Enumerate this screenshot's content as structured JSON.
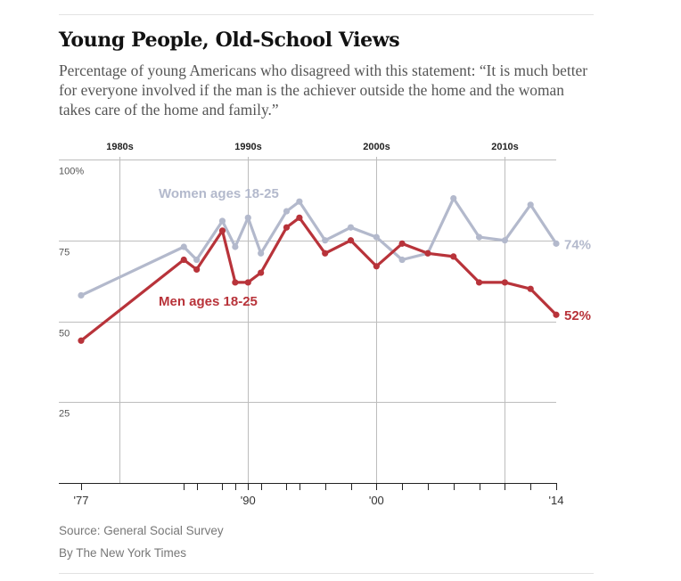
{
  "header": {
    "title": "Young People, Old-School Views",
    "subtitle": "Percentage of young Americans who disagreed with this statement: “It is much better for everyone involved if the man is the achiever outside the home and the woman takes care of the home and family.”"
  },
  "footer": {
    "source": "Source: General Social Survey",
    "byline": "By The New York Times"
  },
  "chart_data": {
    "type": "line",
    "title": "Young People, Old-School Views",
    "xlim": [
      1977,
      2014
    ],
    "ylim": [
      0,
      100
    ],
    "y_ticks": [
      {
        "value": 100,
        "label": "100%"
      },
      {
        "value": 75,
        "label": "75"
      },
      {
        "value": 50,
        "label": "50"
      },
      {
        "value": 25,
        "label": "25"
      }
    ],
    "decade_labels": [
      {
        "value": 1980,
        "label": "1980s"
      },
      {
        "value": 1990,
        "label": "1990s"
      },
      {
        "value": 2000,
        "label": "2000s"
      },
      {
        "value": 2010,
        "label": "2010s"
      }
    ],
    "x_tick_labels": [
      {
        "value": 1977,
        "label": "'77"
      },
      {
        "value": 1990,
        "label": "'90"
      },
      {
        "value": 2000,
        "label": "'00"
      },
      {
        "value": 2014,
        "label": "'14"
      }
    ],
    "survey_years": [
      1977,
      1985,
      1986,
      1988,
      1989,
      1990,
      1991,
      1993,
      1994,
      1996,
      1998,
      2000,
      2002,
      2004,
      2006,
      2008,
      2010,
      2012,
      2014
    ],
    "series": [
      {
        "name": "Women ages 18-25",
        "color": "#b3b9cc",
        "end_label": "74%",
        "x": [
          1977,
          1985,
          1986,
          1988,
          1989,
          1990,
          1991,
          1993,
          1994,
          1996,
          1998,
          2000,
          2002,
          2004,
          2006,
          2008,
          2010,
          2012,
          2014
        ],
        "values": [
          58,
          73,
          69,
          81,
          73,
          82,
          71,
          84,
          87,
          75,
          79,
          76,
          69,
          71,
          88,
          76,
          75,
          86,
          74
        ]
      },
      {
        "name": "Men ages 18-25",
        "color": "#b8333a",
        "end_label": "52%",
        "x": [
          1977,
          1985,
          1986,
          1988,
          1989,
          1990,
          1991,
          1993,
          1994,
          1996,
          1998,
          2000,
          2002,
          2004,
          2006,
          2008,
          2010,
          2012,
          2014
        ],
        "values": [
          44,
          69,
          66,
          78,
          62,
          62,
          65,
          79,
          82,
          71,
          75,
          67,
          74,
          71,
          70,
          62,
          62,
          60,
          52
        ]
      }
    ]
  }
}
